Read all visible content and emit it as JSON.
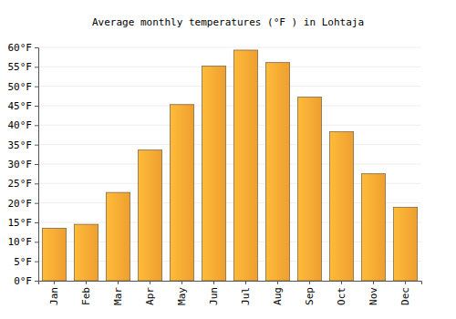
{
  "chart_data": {
    "type": "bar",
    "title": "Average monthly temperatures (°F ) in Lohtaja",
    "categories": [
      "Jan",
      "Feb",
      "Mar",
      "Apr",
      "May",
      "Jun",
      "Jul",
      "Aug",
      "Sep",
      "Oct",
      "Nov",
      "Dec"
    ],
    "values": [
      13.5,
      14.5,
      22.7,
      33.6,
      45.3,
      55.2,
      59.3,
      56.1,
      47.2,
      38.3,
      27.5,
      18.9
    ],
    "color": "#fba833",
    "ylim": [
      0,
      60
    ],
    "yticks": [
      {
        "value": 0,
        "label": "0°F"
      },
      {
        "value": 5,
        "label": "5°F"
      },
      {
        "value": 10,
        "label": "10°F"
      },
      {
        "value": 15,
        "label": "15°F"
      },
      {
        "value": 20,
        "label": "20°F"
      },
      {
        "value": 25,
        "label": "25°F"
      },
      {
        "value": 30,
        "label": "30°F"
      },
      {
        "value": 35,
        "label": "35°F"
      },
      {
        "value": 40,
        "label": "40°F"
      },
      {
        "value": 45,
        "label": "45°F"
      },
      {
        "value": 50,
        "label": "50°F"
      },
      {
        "value": 55,
        "label": "55°F"
      },
      {
        "value": 60,
        "label": "60°F"
      }
    ],
    "grid": true
  }
}
